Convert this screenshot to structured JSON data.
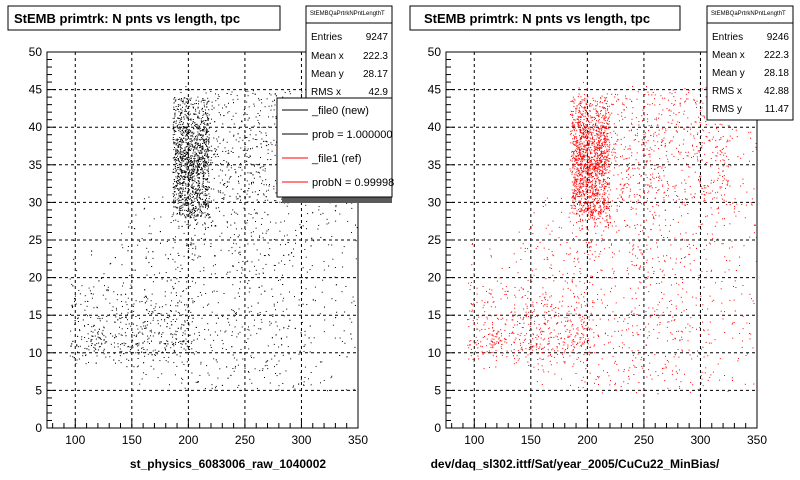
{
  "chart_data": [
    {
      "type": "scatter",
      "title": "StEMB primtrk: N pnts vs length, tpc",
      "xlabel": "st_physics_6083006_raw_1040002",
      "ylabel": "",
      "xlim": [
        75,
        350
      ],
      "ylim": [
        0,
        50
      ],
      "x_ticks": [
        "100",
        "150",
        "200",
        "250",
        "300",
        "350"
      ],
      "y_ticks": [
        "0",
        "5",
        "10",
        "15",
        "20",
        "25",
        "30",
        "35",
        "40",
        "45",
        "50"
      ],
      "grid": true,
      "color": "#000000",
      "stats": {
        "name": "StEMBQaPrtrkNPntLengthT",
        "rows": [
          {
            "label": "Entries",
            "value": "9247"
          },
          {
            "label": "Mean x",
            "value": "222.3"
          },
          {
            "label": "Mean y",
            "value": "28.17"
          },
          {
            "label": "RMS x",
            "value": "42.9"
          }
        ]
      },
      "legend": {
        "placement": "top-right",
        "entries": [
          {
            "text": "_file0 (new)",
            "color": "#000000"
          },
          {
            "text": "prob = 1.000000",
            "color": "#000000"
          },
          {
            "text": "_file1 (ref)",
            "color": "#ff0000"
          },
          {
            "text": "probN = 0.99998",
            "color": "#ff0000"
          }
        ]
      }
    },
    {
      "type": "scatter",
      "title": "StEMB primtrk: N pnts vs length, tpc",
      "xlabel": "dev/daq_sl302.ittf/Sat/year_2005/CuCu22_MinBias/",
      "ylabel": "",
      "xlim": [
        75,
        350
      ],
      "ylim": [
        0,
        50
      ],
      "x_ticks": [
        "100",
        "150",
        "200",
        "250",
        "300",
        "350"
      ],
      "y_ticks": [
        "0",
        "5",
        "10",
        "15",
        "20",
        "25",
        "30",
        "35",
        "40",
        "45",
        "50"
      ],
      "grid": true,
      "color": "#ff0000",
      "stats": {
        "name": "StEMBQaPrtrkNPntLengthT",
        "rows": [
          {
            "label": "Entries",
            "value": "9246"
          },
          {
            "label": "Mean x",
            "value": "222.3"
          },
          {
            "label": "Mean y",
            "value": "28.18"
          },
          {
            "label": "RMS x",
            "value": "42.88"
          },
          {
            "label": "RMS y",
            "value": "11.47"
          }
        ]
      }
    }
  ]
}
